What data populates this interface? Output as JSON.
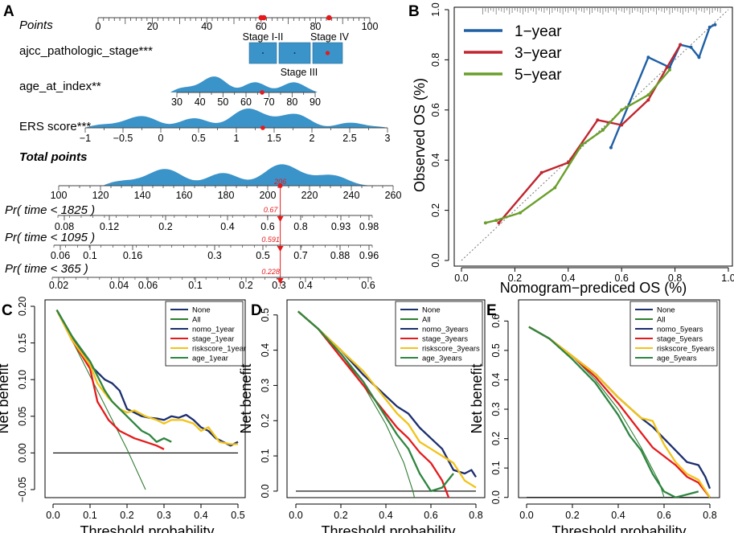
{
  "colors": {
    "dist": "#3a93c9",
    "point": "#e41a1c",
    "year1": "#1f5fa5",
    "year3": "#c0262f",
    "year5": "#6a9f2a",
    "dca_none": "#1c2f6e",
    "dca_all": "#2e7d32",
    "dca_nomo": "#1c2f6e",
    "dca_stage": "#e41a1c",
    "dca_risk": "#f2c318",
    "dca_age": "#2e8540"
  },
  "chart_data": [
    {
      "panel": "A",
      "type": "nomogram",
      "points_scale": {
        "label": "Points",
        "ticks": [
          0,
          20,
          40,
          60,
          80,
          100
        ],
        "markers": [
          60,
          61,
          85
        ]
      },
      "variables": [
        {
          "label": "ajcc_pathologic_stage***",
          "categories": [
            "Stage I-II",
            "Stage III",
            "Stage IV"
          ],
          "selected": "Stage IV"
        },
        {
          "label": "age_at_index**",
          "ticks": [
            30,
            40,
            50,
            60,
            70,
            80,
            90
          ],
          "marker": 67
        },
        {
          "label": "ERS score***",
          "ticks": [
            "−1",
            "−0.5",
            "0",
            "0.5",
            "1",
            "1.5",
            "2",
            "2.5",
            "3"
          ],
          "tick_values": [
            -1,
            -0.5,
            0,
            0.5,
            1,
            1.5,
            2,
            2.5,
            3
          ],
          "marker": 1.35
        }
      ],
      "total_points": {
        "label": "Total points",
        "ticks": [
          100,
          120,
          140,
          160,
          180,
          200,
          220,
          240,
          260
        ],
        "marker": 206,
        "marker_label": "206"
      },
      "probabilities": [
        {
          "label": "Pr( time < 1825 )",
          "ticks": [
            "0.08",
            "0.12",
            "0.2",
            "0.4",
            "0.6",
            "0.8",
            "0.93",
            "0.98"
          ],
          "value": "0.67"
        },
        {
          "label": "Pr( time < 1095 )",
          "ticks": [
            "0.06",
            "0.1",
            "0.16",
            "0.3",
            "0.5",
            "0.7",
            "0.88",
            "0.96"
          ],
          "value": "0.591"
        },
        {
          "label": "Pr( time < 365 )",
          "ticks": [
            "0.02",
            "0.04",
            "0.06",
            "0.1",
            "0.2",
            "0.3",
            "0.4",
            "0.6"
          ],
          "value": "0.228"
        }
      ]
    },
    {
      "panel": "B",
      "type": "line",
      "title": "",
      "xlabel": "Nomogram−prediced OS (%)",
      "ylabel": "Observed OS (%)",
      "xlim": [
        0,
        1
      ],
      "ylim": [
        0,
        1
      ],
      "xticks": [
        "0.0",
        "0.2",
        "0.4",
        "0.6",
        "0.8",
        "1.0"
      ],
      "yticks": [
        "0.0",
        "0.2",
        "0.4",
        "0.6",
        "0.8",
        "1.0"
      ],
      "series": [
        {
          "name": "1−year",
          "color_key": "year1",
          "x": [
            0.56,
            0.7,
            0.78,
            0.82,
            0.86,
            0.89,
            0.93,
            0.95
          ],
          "y": [
            0.45,
            0.81,
            0.77,
            0.86,
            0.85,
            0.81,
            0.93,
            0.94
          ]
        },
        {
          "name": "3−year",
          "color_key": "year3",
          "x": [
            0.14,
            0.3,
            0.4,
            0.51,
            0.6,
            0.7,
            0.77,
            0.82
          ],
          "y": [
            0.15,
            0.35,
            0.39,
            0.56,
            0.54,
            0.64,
            0.77,
            0.86
          ]
        },
        {
          "name": "5−year",
          "color_key": "year5",
          "x": [
            0.09,
            0.13,
            0.22,
            0.35,
            0.45,
            0.53,
            0.6,
            0.7,
            0.78
          ],
          "y": [
            0.15,
            0.16,
            0.19,
            0.29,
            0.46,
            0.52,
            0.6,
            0.66,
            0.76
          ]
        }
      ]
    },
    {
      "panel": "C",
      "type": "line",
      "xlabel": "Threshold probability",
      "ylabel": "Net benefit",
      "xlim": [
        0,
        0.5
      ],
      "ylim": [
        -0.05,
        0.2
      ],
      "xticks": [
        "0.0",
        "0.1",
        "0.2",
        "0.3",
        "0.4",
        "0.5"
      ],
      "yticks": [
        "−0.05",
        "0.00",
        "0.05",
        "0.10",
        "0.15",
        "0.20"
      ],
      "ytick_values": [
        -0.05,
        0,
        0.05,
        0.1,
        0.15,
        0.2
      ],
      "legend": [
        "None",
        "All",
        "nomo_1year",
        "stage_1year",
        "riskscore_1year",
        "age_1year"
      ],
      "series": [
        {
          "name": "None",
          "color_key": "dca_none",
          "x": [
            0,
            0.5
          ],
          "y": [
            0,
            0
          ]
        },
        {
          "name": "All",
          "color_key": "dca_all",
          "x": [
            0.01,
            0.05,
            0.1,
            0.15,
            0.2,
            0.25
          ],
          "y": [
            0.195,
            0.155,
            0.105,
            0.055,
            0.005,
            -0.05
          ]
        },
        {
          "name": "nomo_1year",
          "color_key": "dca_nomo",
          "x": [
            0.01,
            0.05,
            0.08,
            0.1,
            0.12,
            0.14,
            0.16,
            0.18,
            0.2,
            0.22,
            0.24,
            0.26,
            0.28,
            0.3,
            0.32,
            0.34,
            0.36,
            0.38,
            0.4,
            0.42,
            0.44,
            0.46,
            0.48,
            0.5
          ],
          "y": [
            0.195,
            0.16,
            0.135,
            0.12,
            0.11,
            0.1,
            0.095,
            0.085,
            0.06,
            0.055,
            0.05,
            0.048,
            0.047,
            0.045,
            0.05,
            0.048,
            0.052,
            0.045,
            0.035,
            0.03,
            0.02,
            0.015,
            0.01,
            0.015
          ]
        },
        {
          "name": "stage_1year",
          "color_key": "dca_stage",
          "x": [
            0.01,
            0.05,
            0.1,
            0.12,
            0.15,
            0.18,
            0.2,
            0.22,
            0.25,
            0.28,
            0.3
          ],
          "y": [
            0.195,
            0.155,
            0.115,
            0.07,
            0.045,
            0.03,
            0.025,
            0.02,
            0.015,
            0.01,
            0.005
          ]
        },
        {
          "name": "riskscore_1year",
          "color_key": "dca_risk",
          "x": [
            0.01,
            0.05,
            0.1,
            0.12,
            0.15,
            0.18,
            0.2,
            0.22,
            0.25,
            0.28,
            0.3,
            0.32,
            0.35,
            0.38,
            0.4,
            0.42,
            0.45,
            0.48,
            0.5
          ],
          "y": [
            0.195,
            0.155,
            0.12,
            0.095,
            0.075,
            0.06,
            0.055,
            0.058,
            0.05,
            0.045,
            0.04,
            0.045,
            0.045,
            0.04,
            0.03,
            0.035,
            0.015,
            0.012,
            0.012
          ]
        },
        {
          "name": "age_1year",
          "color_key": "dca_age",
          "x": [
            0.01,
            0.05,
            0.1,
            0.12,
            0.14,
            0.16,
            0.18,
            0.2,
            0.22,
            0.24,
            0.26,
            0.28,
            0.3,
            0.32
          ],
          "y": [
            0.195,
            0.16,
            0.125,
            0.105,
            0.085,
            0.07,
            0.06,
            0.05,
            0.04,
            0.03,
            0.025,
            0.015,
            0.02,
            0.015
          ]
        }
      ]
    },
    {
      "panel": "D",
      "type": "line",
      "xlabel": "Threshold probability",
      "ylabel": "Net benefit",
      "xlim": [
        0,
        0.8
      ],
      "ylim": [
        -0.08,
        0.52
      ],
      "xticks": [
        "0.0",
        "0.2",
        "0.4",
        "0.6",
        "0.8"
      ],
      "yticks": [
        "0.0",
        "0.1",
        "0.2",
        "0.3",
        "0.4",
        "0.5"
      ],
      "ytick_values": [
        0,
        0.1,
        0.2,
        0.3,
        0.4,
        0.5
      ],
      "legend": [
        "None",
        "All",
        "nomo_3years",
        "stage_3years",
        "riskscore_3years",
        "age_3years"
      ],
      "series": [
        {
          "name": "None",
          "color_key": "dca_none",
          "x": [
            0,
            0.8
          ],
          "y": [
            0,
            0
          ]
        },
        {
          "name": "All",
          "color_key": "dca_all",
          "x": [
            0.01,
            0.1,
            0.2,
            0.3,
            0.4,
            0.48,
            0.52,
            0.55
          ],
          "y": [
            0.51,
            0.46,
            0.39,
            0.3,
            0.19,
            0.08,
            0.0,
            -0.08
          ]
        },
        {
          "name": "nomo_3years",
          "color_key": "dca_nomo",
          "x": [
            0.01,
            0.1,
            0.2,
            0.3,
            0.4,
            0.45,
            0.5,
            0.55,
            0.6,
            0.65,
            0.7,
            0.75,
            0.78,
            0.8
          ],
          "y": [
            0.51,
            0.46,
            0.4,
            0.33,
            0.27,
            0.24,
            0.22,
            0.18,
            0.15,
            0.12,
            0.06,
            0.05,
            0.06,
            0.04
          ]
        },
        {
          "name": "stage_3years",
          "color_key": "dca_stage",
          "x": [
            0.01,
            0.1,
            0.2,
            0.3,
            0.4,
            0.45,
            0.5,
            0.55,
            0.6,
            0.65,
            0.68
          ],
          "y": [
            0.51,
            0.46,
            0.38,
            0.3,
            0.22,
            0.18,
            0.15,
            0.11,
            0.08,
            0.03,
            -0.02
          ]
        },
        {
          "name": "riskscore_3years",
          "color_key": "dca_risk",
          "x": [
            0.01,
            0.1,
            0.2,
            0.3,
            0.4,
            0.45,
            0.5,
            0.55,
            0.6,
            0.65,
            0.7,
            0.75,
            0.8
          ],
          "y": [
            0.51,
            0.46,
            0.4,
            0.34,
            0.26,
            0.22,
            0.19,
            0.14,
            0.12,
            0.1,
            0.08,
            0.03,
            0.01
          ]
        },
        {
          "name": "age_3years",
          "color_key": "dca_age",
          "x": [
            0.01,
            0.1,
            0.2,
            0.3,
            0.4,
            0.45,
            0.5,
            0.55,
            0.6,
            0.65,
            0.7
          ],
          "y": [
            0.51,
            0.46,
            0.39,
            0.31,
            0.21,
            0.16,
            0.12,
            0.05,
            0.0,
            0.01,
            0.05
          ]
        }
      ]
    },
    {
      "panel": "E",
      "type": "line",
      "xlabel": "Threshold probability",
      "ylabel": "Net benefit",
      "xlim": [
        0,
        0.8
      ],
      "ylim": [
        -0.05,
        0.62
      ],
      "xticks": [
        "0.0",
        "0.2",
        "0.4",
        "0.6",
        "0.8"
      ],
      "yticks": [
        "0.0",
        "0.1",
        "0.2",
        "0.3",
        "0.4",
        "0.5",
        "0.6"
      ],
      "ytick_values": [
        0,
        0.1,
        0.2,
        0.3,
        0.4,
        0.5,
        0.6
      ],
      "legend": [
        "None",
        "All",
        "nomo_5years",
        "stage_5years",
        "riskscore_5years",
        "age_5years"
      ],
      "series": [
        {
          "name": "None",
          "color_key": "dca_none",
          "x": [
            0,
            0.8
          ],
          "y": [
            0,
            0
          ]
        },
        {
          "name": "All",
          "color_key": "dca_all",
          "x": [
            0.01,
            0.1,
            0.2,
            0.3,
            0.4,
            0.5,
            0.58,
            0.62
          ],
          "y": [
            0.58,
            0.54,
            0.48,
            0.4,
            0.3,
            0.17,
            0.05,
            -0.05
          ]
        },
        {
          "name": "nomo_5years",
          "color_key": "dca_nomo",
          "x": [
            0.01,
            0.1,
            0.2,
            0.3,
            0.4,
            0.5,
            0.55,
            0.6,
            0.65,
            0.7,
            0.75,
            0.78,
            0.8
          ],
          "y": [
            0.58,
            0.54,
            0.48,
            0.42,
            0.34,
            0.27,
            0.24,
            0.2,
            0.16,
            0.12,
            0.11,
            0.07,
            0.03
          ]
        },
        {
          "name": "stage_5years",
          "color_key": "dca_stage",
          "x": [
            0.01,
            0.1,
            0.2,
            0.3,
            0.4,
            0.5,
            0.55,
            0.6,
            0.65,
            0.7,
            0.75,
            0.8
          ],
          "y": [
            0.58,
            0.54,
            0.48,
            0.41,
            0.32,
            0.22,
            0.17,
            0.14,
            0.11,
            0.07,
            0.05,
            0.0
          ]
        },
        {
          "name": "riskscore_5years",
          "color_key": "dca_risk",
          "x": [
            0.01,
            0.1,
            0.2,
            0.3,
            0.4,
            0.5,
            0.55,
            0.6,
            0.65,
            0.7,
            0.75,
            0.8
          ],
          "y": [
            0.58,
            0.54,
            0.48,
            0.42,
            0.34,
            0.27,
            0.26,
            0.18,
            0.12,
            0.08,
            0.06,
            0.0
          ]
        },
        {
          "name": "age_5years",
          "color_key": "dca_age",
          "x": [
            0.01,
            0.1,
            0.2,
            0.3,
            0.4,
            0.45,
            0.5,
            0.55,
            0.6,
            0.65,
            0.7,
            0.75
          ],
          "y": [
            0.58,
            0.54,
            0.47,
            0.39,
            0.28,
            0.21,
            0.16,
            0.08,
            0.02,
            0.0,
            0.01,
            0.02
          ]
        }
      ]
    }
  ]
}
